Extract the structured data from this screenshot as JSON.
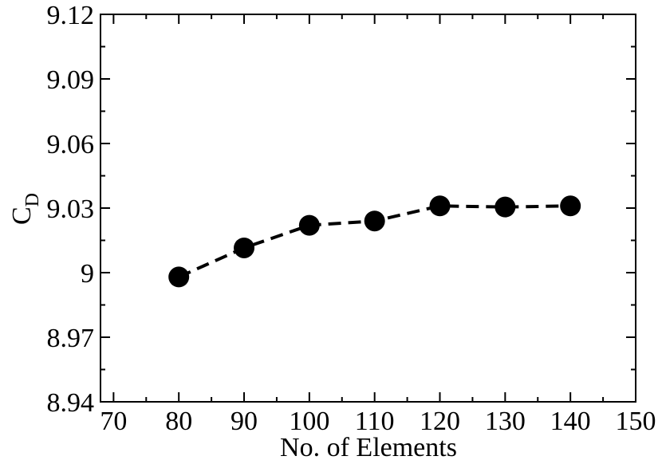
{
  "chart_data": {
    "type": "line",
    "xlabel": "No. of Elements",
    "ylabel": "C",
    "ylabel_subscript": "D",
    "x": [
      80,
      90,
      100,
      110,
      120,
      130,
      140
    ],
    "series": [
      {
        "color": "#000000",
        "values": [
          8.998,
          9.0115,
          9.022,
          9.024,
          9.031,
          9.0305,
          9.031
        ]
      }
    ],
    "xlim": [
      68,
      150
    ],
    "xticks": [
      70,
      80,
      90,
      100,
      110,
      120,
      130,
      140,
      150
    ],
    "ylim": [
      8.94,
      9.12
    ],
    "yticks": [
      8.94,
      8.97,
      9,
      9.03,
      9.06,
      9.09,
      9.12
    ]
  }
}
